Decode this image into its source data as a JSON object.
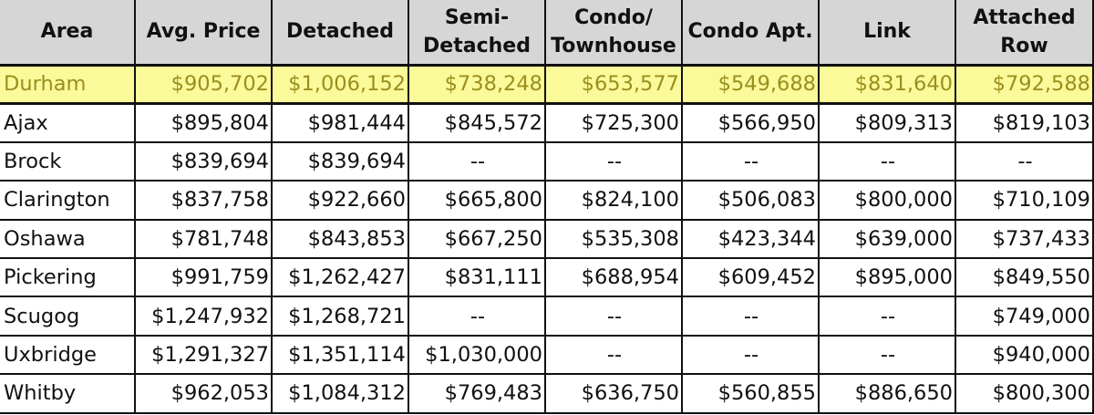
{
  "columns": [
    "Area",
    "Avg. Price",
    "Detached",
    "Semi-Detached",
    "Condo/Townhouse",
    "Condo Apt.",
    "Link",
    "Attached Row"
  ],
  "headers": [
    [
      "Area"
    ],
    [
      "Avg. Price"
    ],
    [
      "Detached"
    ],
    [
      "Semi-",
      "Detached"
    ],
    [
      "Condo/",
      "Townhouse"
    ],
    [
      "Condo Apt."
    ],
    [
      "Link"
    ],
    [
      "Attached",
      "Row"
    ]
  ],
  "highlight_color": "#fbfa9a",
  "header_color": "#d6d6d6",
  "rows": [
    {
      "highlight": true,
      "cells": [
        "Durham",
        "$905,702",
        "$1,006,152",
        "$738,248",
        "$653,577",
        "$549,688",
        "$831,640",
        "$792,588"
      ]
    },
    {
      "highlight": false,
      "cells": [
        "Ajax",
        "$895,804",
        "$981,444",
        "$845,572",
        "$725,300",
        "$566,950",
        "$809,313",
        "$819,103"
      ]
    },
    {
      "highlight": false,
      "cells": [
        "Brock",
        "$839,694",
        "$839,694",
        "--",
        "--",
        "--",
        "--",
        "--"
      ]
    },
    {
      "highlight": false,
      "cells": [
        "Clarington",
        "$837,758",
        "$922,660",
        "$665,800",
        "$824,100",
        "$506,083",
        "$800,000",
        "$710,109"
      ]
    },
    {
      "highlight": false,
      "cells": [
        "Oshawa",
        "$781,748",
        "$843,853",
        "$667,250",
        "$535,308",
        "$423,344",
        "$639,000",
        "$737,433"
      ]
    },
    {
      "highlight": false,
      "cells": [
        "Pickering",
        "$991,759",
        "$1,262,427",
        "$831,111",
        "$688,954",
        "$609,452",
        "$895,000",
        "$849,550"
      ]
    },
    {
      "highlight": false,
      "cells": [
        "Scugog",
        "$1,247,932",
        "$1,268,721",
        "--",
        "--",
        "--",
        "--",
        "$749,000"
      ]
    },
    {
      "highlight": false,
      "cells": [
        "Uxbridge",
        "$1,291,327",
        "$1,351,114",
        "$1,030,000",
        "--",
        "--",
        "--",
        "$940,000"
      ]
    },
    {
      "highlight": false,
      "cells": [
        "Whitby",
        "$962,053",
        "$1,084,312",
        "$769,483",
        "$636,750",
        "$560,855",
        "$886,650",
        "$800,300"
      ]
    }
  ]
}
